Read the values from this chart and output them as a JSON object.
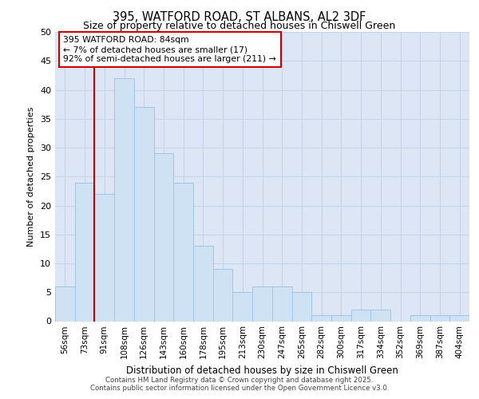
{
  "title1": "395, WATFORD ROAD, ST ALBANS, AL2 3DF",
  "title2": "Size of property relative to detached houses in Chiswell Green",
  "xlabel": "Distribution of detached houses by size in Chiswell Green",
  "ylabel": "Number of detached properties",
  "categories": [
    "56sqm",
    "73sqm",
    "91sqm",
    "108sqm",
    "126sqm",
    "143sqm",
    "160sqm",
    "178sqm",
    "195sqm",
    "213sqm",
    "230sqm",
    "247sqm",
    "265sqm",
    "282sqm",
    "300sqm",
    "317sqm",
    "334sqm",
    "352sqm",
    "369sqm",
    "387sqm",
    "404sqm"
  ],
  "values": [
    6,
    24,
    22,
    42,
    37,
    29,
    24,
    13,
    9,
    5,
    6,
    6,
    5,
    1,
    1,
    2,
    2,
    0,
    1,
    1,
    1
  ],
  "bar_color": "#cfe2f3",
  "bar_edge_color": "#9fc5e8",
  "red_line_x": 2.0,
  "annotation_line1": "395 WATFORD ROAD: 84sqm",
  "annotation_line2": "← 7% of detached houses are smaller (17)",
  "annotation_line3": "92% of semi-detached houses are larger (211) →",
  "annotation_box_color": "#ffffff",
  "annotation_box_edge": "#cc0000",
  "ylim": [
    0,
    50
  ],
  "yticks": [
    0,
    5,
    10,
    15,
    20,
    25,
    30,
    35,
    40,
    45,
    50
  ],
  "grid_color": "#c8d4e8",
  "background_color": "#dce6f5",
  "fig_background": "#ffffff",
  "footer1": "Contains HM Land Registry data © Crown copyright and database right 2025.",
  "footer2": "Contains public sector information licensed under the Open Government Licence v3.0."
}
